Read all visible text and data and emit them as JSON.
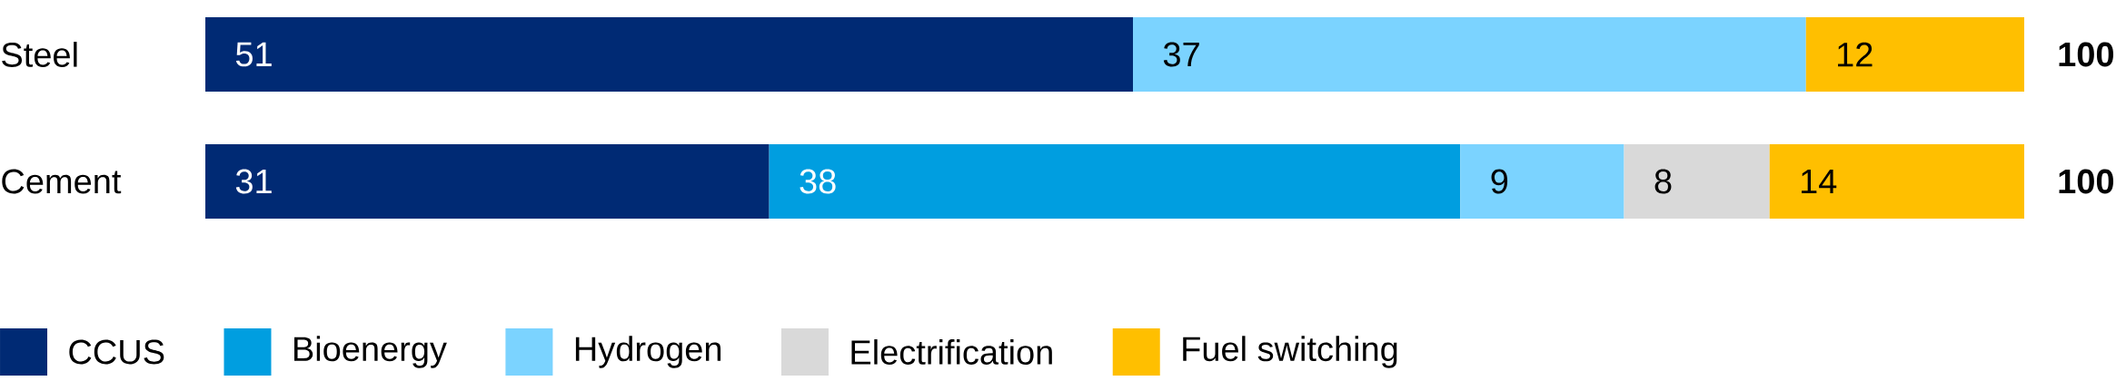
{
  "chart_data": {
    "type": "bar",
    "orientation": "horizontal",
    "stacked": true,
    "categories": [
      "Steel",
      "Cement"
    ],
    "series": [
      {
        "name": "CCUS",
        "color": "#002a74",
        "values": [
          51,
          31
        ]
      },
      {
        "name": "Bioenergy",
        "color": "#009ee0",
        "values": [
          null,
          38
        ]
      },
      {
        "name": "Hydrogen",
        "color": "#7bd3ff",
        "values": [
          37,
          9
        ]
      },
      {
        "name": "Electrification",
        "color": "#d9d9d9",
        "values": [
          null,
          8
        ]
      },
      {
        "name": "Fuel switching",
        "color": "#ffbf00",
        "values": [
          12,
          14
        ]
      }
    ],
    "data_labels": true,
    "totals": [
      "100",
      "100"
    ],
    "legend": "bottom"
  }
}
